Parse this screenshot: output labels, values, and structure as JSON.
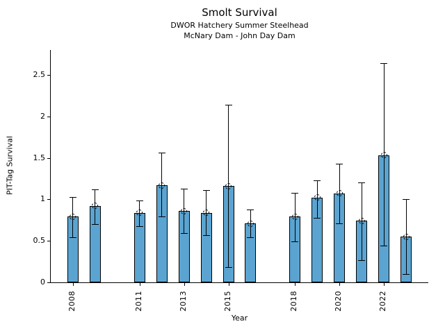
{
  "chart_data": {
    "type": "bar",
    "title": "Smolt Survival",
    "subtitle1": "DWOR Hatchery Summer Steelhead",
    "subtitle2": "McNary Dam - John Day Dam",
    "xlabel": "Year",
    "ylabel": "PIT-Tag Survival",
    "categories": [
      2008,
      2009,
      2011,
      2012,
      2013,
      2014,
      2015,
      2016,
      2018,
      2019,
      2020,
      2021,
      2022,
      2023
    ],
    "values": [
      0.79,
      0.92,
      0.84,
      1.17,
      0.86,
      0.84,
      1.16,
      0.71,
      0.79,
      1.02,
      1.07,
      0.74,
      1.53,
      0.55
    ],
    "error_low": [
      0.54,
      0.7,
      0.68,
      0.79,
      0.59,
      0.57,
      0.18,
      0.54,
      0.49,
      0.78,
      0.71,
      0.27,
      0.44,
      0.1
    ],
    "error_high": [
      1.03,
      1.12,
      0.99,
      1.56,
      1.13,
      1.11,
      2.14,
      0.88,
      1.08,
      1.23,
      1.43,
      1.2,
      2.64,
      1.0
    ],
    "xtick_values": [
      2008,
      2011,
      2013,
      2015,
      2018,
      2020,
      2022
    ],
    "xtick_labels": [
      "2008",
      "2011",
      "2013",
      "2015",
      "2018",
      "2020",
      "2022"
    ],
    "ytick_values": [
      0,
      0.5,
      1,
      1.5,
      2,
      2.5
    ],
    "ytick_labels": [
      "0",
      "0.5",
      "1",
      "1.5",
      "2",
      "2.5"
    ],
    "xlim": [
      2007,
      2024
    ],
    "ylim": [
      0,
      2.8
    ],
    "grid": false,
    "legend_position": "none",
    "bar_color": "#5BA4D1",
    "bar_edge_color": "#000000",
    "error_color": "#000000",
    "background_color": "#FFFFFF"
  }
}
